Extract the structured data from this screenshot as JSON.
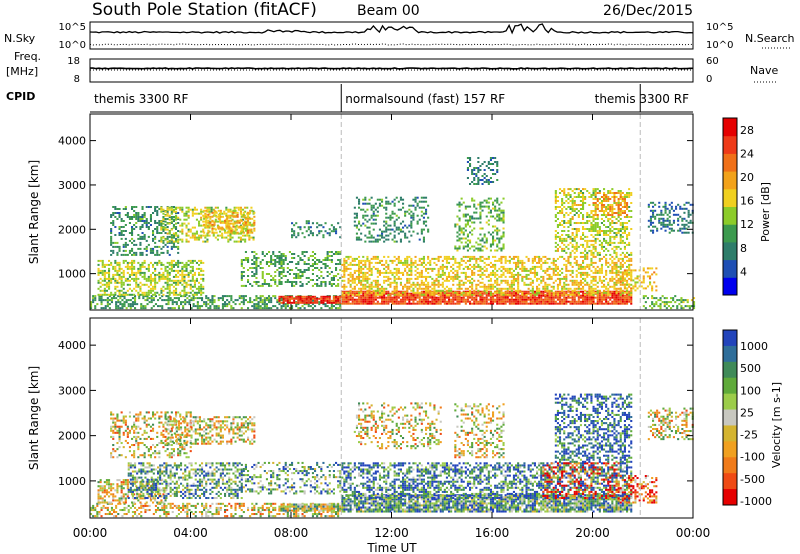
{
  "header": {
    "station": "South Pole Station (fitACF)",
    "beam": "Beam 00",
    "date": "26/Dec/2015"
  },
  "strip_labels": {
    "nsky": "N.Sky",
    "nsearch": "N.Search",
    "freq_top": "Freq.",
    "freq_unit": "[MHz]",
    "nave": "Nave",
    "cpid": "CPID"
  },
  "strip_ticks": {
    "noise_left": [
      "10^5",
      "10^0"
    ],
    "noise_right": [
      "10^5",
      "10^0"
    ],
    "freq_left": [
      "18",
      "8"
    ],
    "freq_right": [
      "60",
      "0"
    ]
  },
  "cpid_segments": [
    {
      "label": "themis 3300 RF",
      "start_hour": 0,
      "end_hour": 10
    },
    {
      "label": "normalsound (fast) 157 RF",
      "start_hour": 10,
      "end_hour": 21.9
    },
    {
      "label": "themis 3300 RF",
      "start_hour": 21.9,
      "end_hour": 24
    }
  ],
  "colors": {
    "power_scale": [
      "#0000ee",
      "#1f4fb4",
      "#2e7d6a",
      "#3c9a4e",
      "#8ccc2a",
      "#f0d020",
      "#f2a21a",
      "#f07018",
      "#ee3a18",
      "#e50000"
    ],
    "velocity_scale": [
      "#2244bb",
      "#2f6e9a",
      "#3f8a58",
      "#5faa3a",
      "#9ccc4a",
      "#c8c8c0",
      "#d4b430",
      "#f0a020",
      "#f07b1a",
      "#ef4a14",
      "#e60000"
    ],
    "vline": "#bbbbbb"
  },
  "chart_data": [
    {
      "type": "heatmap",
      "title": "Power",
      "xlabel": "Time UT",
      "ylabel": "Slant Range [km]",
      "colorbar_label": "Power [dB]",
      "colorbar_ticks": [
        "4",
        "8",
        "12",
        "16",
        "20",
        "24",
        "28"
      ],
      "colorbar_range": [
        0,
        30
      ],
      "xlim_hours": [
        0,
        24
      ],
      "ylim_km": [
        180,
        4600
      ],
      "yticks": [
        "1000",
        "2000",
        "3000",
        "4000"
      ],
      "xticks": [
        "00:00",
        "04:00",
        "08:00",
        "12:00",
        "16:00",
        "20:00",
        "00:00"
      ],
      "scatter_regions": [
        {
          "t0": 0.0,
          "t1": 10.0,
          "r0": 200,
          "r1": 500,
          "value": 10,
          "density": 0.5
        },
        {
          "t0": 0.3,
          "t1": 4.5,
          "r0": 500,
          "r1": 1300,
          "value": 14,
          "density": 0.55
        },
        {
          "t0": 0.8,
          "t1": 3.5,
          "r0": 1400,
          "r1": 2500,
          "value": 9,
          "density": 0.35
        },
        {
          "t0": 2.8,
          "t1": 6.5,
          "r0": 1700,
          "r1": 2500,
          "value": 15,
          "density": 0.45
        },
        {
          "t0": 4.5,
          "t1": 6.5,
          "r0": 1900,
          "r1": 2400,
          "value": 18,
          "density": 0.5
        },
        {
          "t0": 6.0,
          "t1": 10.0,
          "r0": 700,
          "r1": 1500,
          "value": 11,
          "density": 0.35
        },
        {
          "t0": 7.5,
          "t1": 10.0,
          "r0": 320,
          "r1": 500,
          "value": 26,
          "density": 0.9
        },
        {
          "t0": 8.0,
          "t1": 10.0,
          "r0": 1800,
          "r1": 2200,
          "value": 8,
          "density": 0.3
        },
        {
          "t0": 10.0,
          "t1": 21.5,
          "r0": 300,
          "r1": 600,
          "value": 25,
          "density": 0.9
        },
        {
          "t0": 10.0,
          "t1": 21.5,
          "r0": 500,
          "r1": 1400,
          "value": 17,
          "density": 0.5
        },
        {
          "t0": 10.5,
          "t1": 13.5,
          "r0": 1700,
          "r1": 2700,
          "value": 9,
          "density": 0.3
        },
        {
          "t0": 14.5,
          "t1": 16.5,
          "r0": 1500,
          "r1": 2700,
          "value": 12,
          "density": 0.35
        },
        {
          "t0": 15.0,
          "t1": 16.2,
          "r0": 3000,
          "r1": 3600,
          "value": 8,
          "density": 0.3
        },
        {
          "t0": 18.5,
          "t1": 21.5,
          "r0": 1400,
          "r1": 2900,
          "value": 15,
          "density": 0.4
        },
        {
          "t0": 20.0,
          "t1": 21.4,
          "r0": 2300,
          "r1": 2800,
          "value": 20,
          "density": 0.5
        },
        {
          "t0": 21.0,
          "t1": 22.5,
          "r0": 600,
          "r1": 1100,
          "value": 18,
          "density": 0.4
        },
        {
          "t0": 22.0,
          "t1": 24.0,
          "r0": 200,
          "r1": 500,
          "value": 12,
          "density": 0.45
        },
        {
          "t0": 22.2,
          "t1": 24.0,
          "r0": 1900,
          "r1": 2600,
          "value": 7,
          "density": 0.35
        }
      ]
    },
    {
      "type": "heatmap",
      "title": "Velocity",
      "xlabel": "Time UT",
      "ylabel": "Slant Range [km]",
      "colorbar_label": "Velocity [m s-1]",
      "colorbar_ticks": [
        "1000",
        "500",
        "100",
        "25",
        "-25",
        "-100",
        "-500",
        "-1000"
      ],
      "xlim_hours": [
        0,
        24
      ],
      "ylim_km": [
        180,
        4600
      ],
      "yticks": [
        "1000",
        "2000",
        "3000",
        "4000"
      ],
      "xticks": [
        "00:00",
        "04:00",
        "08:00",
        "12:00",
        "16:00",
        "20:00",
        "00:00"
      ],
      "scatter_regions": [
        {
          "t0": 0.0,
          "t1": 10.0,
          "r0": 200,
          "r1": 500,
          "value": 5,
          "density": 0.45
        },
        {
          "t0": 0.3,
          "t1": 3.0,
          "r0": 500,
          "r1": 1000,
          "value": 5,
          "density": 0.5
        },
        {
          "t0": 1.5,
          "t1": 6.0,
          "r0": 600,
          "r1": 1400,
          "value": 8,
          "density": 0.5
        },
        {
          "t0": 0.8,
          "t1": 4.0,
          "r0": 1500,
          "r1": 2500,
          "value": 5,
          "density": 0.35
        },
        {
          "t0": 3.0,
          "t1": 6.5,
          "r0": 1800,
          "r1": 2400,
          "value": 5,
          "density": 0.45
        },
        {
          "t0": 7.5,
          "t1": 10.0,
          "r0": 320,
          "r1": 500,
          "value": 6,
          "density": 0.85
        },
        {
          "t0": 6.0,
          "t1": 10.0,
          "r0": 700,
          "r1": 1400,
          "value": 8,
          "density": 0.35
        },
        {
          "t0": 10.0,
          "t1": 21.5,
          "r0": 300,
          "r1": 700,
          "value": 8,
          "density": 0.85
        },
        {
          "t0": 10.0,
          "t1": 21.5,
          "r0": 600,
          "r1": 1400,
          "value": 9,
          "density": 0.55
        },
        {
          "t0": 18.0,
          "t1": 21.0,
          "r0": 600,
          "r1": 1400,
          "value": 1,
          "density": 0.3
        },
        {
          "t0": 10.5,
          "t1": 14.0,
          "r0": 1700,
          "r1": 2700,
          "value": 5,
          "density": 0.3
        },
        {
          "t0": 14.5,
          "t1": 16.5,
          "r0": 1500,
          "r1": 2700,
          "value": 5,
          "density": 0.3
        },
        {
          "t0": 18.5,
          "t1": 21.5,
          "r0": 1400,
          "r1": 2900,
          "value": 10,
          "density": 0.45
        },
        {
          "t0": 21.0,
          "t1": 22.5,
          "r0": 500,
          "r1": 1100,
          "value": 2,
          "density": 0.4
        },
        {
          "t0": 22.2,
          "t1": 24.0,
          "r0": 1900,
          "r1": 2600,
          "value": 5,
          "density": 0.35
        }
      ]
    }
  ]
}
